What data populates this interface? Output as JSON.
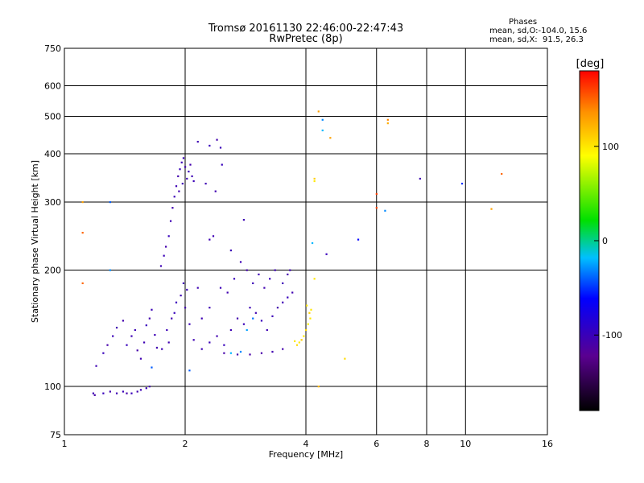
{
  "chart_data": {
    "type": "scatter",
    "title": "Tromsø 20161130 22:46:00-22:47:43",
    "subtitle": "RwPretec (8p)",
    "xlabel": "Frequency [MHz]",
    "ylabel": "Stationary phase Virtual Height [km]",
    "x_scale": "log",
    "y_scale": "log",
    "xlim": [
      1,
      16
    ],
    "ylim": [
      75,
      750
    ],
    "x_ticks": [
      1,
      2,
      4,
      6,
      8,
      10,
      16
    ],
    "y_ticks": [
      75,
      100,
      200,
      300,
      400,
      500,
      600,
      750
    ],
    "grid": true,
    "phases": {
      "title": "Phases",
      "line_o": "mean, sd,O:-104.0, 15.6",
      "line_x": "mean, sd,X:  91.5, 26.3"
    },
    "colorbar": {
      "label": "[deg]",
      "range": [
        -180,
        180
      ],
      "ticks": [
        100,
        0,
        -100
      ]
    },
    "points": [
      [
        1.18,
        96,
        -105
      ],
      [
        1.19,
        95,
        -110
      ],
      [
        1.25,
        96,
        -100
      ],
      [
        1.3,
        97,
        -108
      ],
      [
        1.35,
        96,
        -104
      ],
      [
        1.4,
        97,
        -102
      ],
      [
        1.43,
        96,
        -110
      ],
      [
        1.47,
        96,
        -100
      ],
      [
        1.52,
        97,
        -106
      ],
      [
        1.55,
        98,
        -104
      ],
      [
        1.6,
        99,
        -102
      ],
      [
        1.63,
        100,
        -108
      ],
      [
        1.2,
        113,
        -104
      ],
      [
        1.25,
        122,
        -100
      ],
      [
        1.28,
        128,
        -110
      ],
      [
        1.32,
        135,
        -102
      ],
      [
        1.35,
        142,
        -106
      ],
      [
        1.4,
        148,
        -108
      ],
      [
        1.43,
        128,
        -100
      ],
      [
        1.47,
        135,
        -104
      ],
      [
        1.5,
        140,
        -102
      ],
      [
        1.52,
        124,
        -110
      ],
      [
        1.55,
        118,
        -106
      ],
      [
        1.58,
        130,
        -104
      ],
      [
        1.6,
        144,
        -100
      ],
      [
        1.63,
        150,
        -108
      ],
      [
        1.65,
        158,
        -102
      ],
      [
        1.68,
        136,
        -104
      ],
      [
        1.7,
        126,
        -106
      ],
      [
        1.74,
        205,
        -104
      ],
      [
        1.77,
        218,
        -102
      ],
      [
        1.79,
        230,
        -108
      ],
      [
        1.82,
        245,
        -100
      ],
      [
        1.84,
        268,
        -104
      ],
      [
        1.86,
        290,
        -106
      ],
      [
        1.88,
        310,
        -102
      ],
      [
        1.9,
        330,
        -104
      ],
      [
        1.92,
        350,
        -108
      ],
      [
        1.94,
        365,
        -100
      ],
      [
        1.96,
        380,
        -104
      ],
      [
        1.98,
        390,
        -102
      ],
      [
        2.0,
        370,
        -106
      ],
      [
        2.02,
        345,
        -104
      ],
      [
        2.04,
        360,
        -100
      ],
      [
        2.06,
        375,
        -108
      ],
      [
        2.08,
        350,
        -104
      ],
      [
        2.1,
        340,
        -102
      ],
      [
        1.93,
        320,
        -106
      ],
      [
        1.97,
        335,
        -104
      ],
      [
        1.75,
        125,
        -104
      ],
      [
        1.8,
        140,
        -102
      ],
      [
        1.85,
        150,
        -106
      ],
      [
        1.9,
        165,
        -100
      ],
      [
        1.95,
        172,
        -104
      ],
      [
        2.0,
        160,
        -108
      ],
      [
        2.05,
        145,
        -102
      ],
      [
        2.1,
        132,
        -104
      ],
      [
        1.82,
        130,
        -106
      ],
      [
        1.88,
        155,
        -100
      ],
      [
        1.98,
        185,
        -104
      ],
      [
        2.02,
        178,
        -102
      ],
      [
        2.15,
        430,
        -104
      ],
      [
        2.3,
        420,
        -100
      ],
      [
        2.4,
        435,
        -108
      ],
      [
        2.45,
        415,
        -102
      ],
      [
        2.25,
        335,
        -104
      ],
      [
        2.38,
        320,
        -106
      ],
      [
        2.47,
        375,
        -100
      ],
      [
        2.3,
        240,
        -104
      ],
      [
        2.2,
        125,
        -104
      ],
      [
        2.3,
        130,
        -102
      ],
      [
        2.4,
        135,
        -106
      ],
      [
        2.5,
        128,
        -100
      ],
      [
        2.6,
        140,
        -104
      ],
      [
        2.7,
        150,
        -108
      ],
      [
        2.8,
        145,
        -102
      ],
      [
        2.9,
        160,
        -104
      ],
      [
        3.0,
        155,
        -106
      ],
      [
        3.1,
        148,
        -100
      ],
      [
        3.2,
        140,
        -104
      ],
      [
        3.3,
        152,
        -102
      ],
      [
        3.4,
        160,
        -108
      ],
      [
        3.5,
        165,
        -104
      ],
      [
        3.6,
        170,
        -100
      ],
      [
        3.7,
        175,
        -106
      ],
      [
        2.3,
        160,
        -104
      ],
      [
        2.45,
        180,
        -102
      ],
      [
        2.55,
        175,
        -106
      ],
      [
        2.65,
        190,
        -100
      ],
      [
        2.75,
        210,
        -104
      ],
      [
        2.85,
        200,
        -108
      ],
      [
        2.95,
        185,
        -102
      ],
      [
        3.05,
        195,
        -104
      ],
      [
        3.15,
        180,
        -106
      ],
      [
        3.25,
        190,
        -100
      ],
      [
        3.35,
        200,
        -104
      ],
      [
        3.5,
        185,
        -102
      ],
      [
        3.6,
        195,
        -108
      ],
      [
        3.65,
        200,
        -104
      ],
      [
        2.8,
        270,
        -104
      ],
      [
        2.6,
        225,
        -102
      ],
      [
        2.5,
        122,
        -110
      ],
      [
        2.7,
        121,
        -108
      ],
      [
        2.9,
        121,
        -112
      ],
      [
        3.1,
        122,
        -110
      ],
      [
        3.3,
        123,
        -106
      ],
      [
        3.5,
        125,
        -108
      ],
      [
        2.6,
        122,
        -20
      ],
      [
        2.75,
        123,
        -30
      ],
      [
        2.85,
        140,
        -25
      ],
      [
        2.95,
        150,
        -35
      ],
      [
        3.85,
        130,
        100
      ],
      [
        3.9,
        132,
        110
      ],
      [
        3.95,
        135,
        100
      ],
      [
        4.0,
        140,
        105
      ],
      [
        4.05,
        145,
        95
      ],
      [
        4.1,
        150,
        100
      ],
      [
        3.8,
        128,
        105
      ],
      [
        3.75,
        131,
        100
      ],
      [
        4.08,
        155,
        110
      ],
      [
        4.12,
        158,
        100
      ],
      [
        4.02,
        162,
        100
      ],
      [
        4.2,
        340,
        100
      ],
      [
        4.2,
        345,
        110
      ],
      [
        5.0,
        118,
        105
      ],
      [
        4.3,
        100,
        120
      ],
      [
        4.3,
        515,
        130
      ],
      [
        4.4,
        490,
        -30
      ],
      [
        4.4,
        460,
        -20
      ],
      [
        4.6,
        440,
        130
      ],
      [
        4.15,
        235,
        -20
      ],
      [
        4.5,
        220,
        -100
      ],
      [
        5.4,
        240,
        -60
      ],
      [
        6.0,
        315,
        160
      ],
      [
        6.0,
        290,
        160
      ],
      [
        6.3,
        285,
        -30
      ],
      [
        6.4,
        480,
        125
      ],
      [
        6.4,
        490,
        140
      ],
      [
        7.7,
        345,
        -105
      ],
      [
        9.8,
        335,
        -50
      ],
      [
        11.6,
        288,
        130
      ],
      [
        12.3,
        355,
        150
      ],
      [
        4.2,
        190,
        100
      ],
      [
        1.11,
        300,
        130
      ],
      [
        1.11,
        250,
        150
      ],
      [
        1.11,
        185,
        150
      ],
      [
        1.3,
        300,
        -40
      ],
      [
        1.3,
        200,
        -30
      ],
      [
        2.05,
        110,
        -40
      ],
      [
        1.65,
        112,
        -40
      ],
      [
        2.35,
        245,
        -104
      ],
      [
        2.2,
        150,
        -104
      ],
      [
        2.15,
        180,
        -104
      ]
    ]
  }
}
